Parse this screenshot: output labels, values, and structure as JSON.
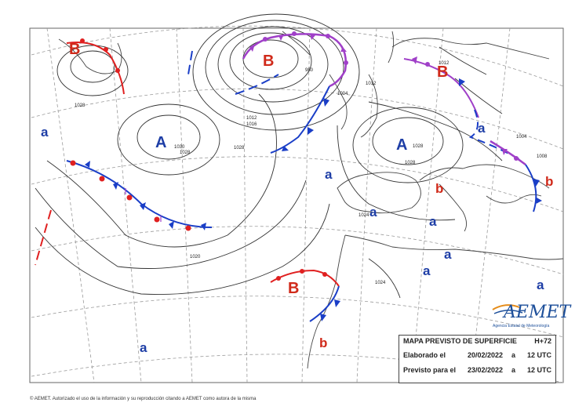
{
  "logo": {
    "name": "AEMET",
    "subtitle": "Agencia Estatal de Meteorología"
  },
  "info_box": {
    "title": "MAPA PREVISTO DE SUPERFICIE",
    "forecast_hour": "H+72",
    "issued_label": "Elaborado el",
    "issued_date": "20/02/2022",
    "issued_sep": "a",
    "issued_time": "12 UTC",
    "valid_label": "Previsto para el",
    "valid_date": "23/02/2022",
    "valid_sep": "a",
    "valid_time": "12 UTC"
  },
  "footer": {
    "copyright": "© AEMET. Autorizado el uso de la información y su reproducción citando a AEMET como autora de la misma"
  },
  "pressure_centers": {
    "b_greenland": "B",
    "b_north_atlantic": "B",
    "b_scandinavia": "B",
    "b_canaries": "B",
    "a_azores": "A",
    "a_europe": "A",
    "b_spain": "b",
    "b_greece": "b",
    "b_sahara": "b",
    "a_west": "a",
    "a_atlantic_mid": "a",
    "a_spain": "a",
    "a_med1": "a",
    "a_med2": "a",
    "a_africa1": "a",
    "a_africa2": "a",
    "a_south": "a",
    "a_italy": "a"
  },
  "isobar_labels": {
    "l1028a": "1028",
    "l1030": "1030",
    "l1028b": "1028",
    "l1028c": "1028",
    "l1020": "1020",
    "l1012a": "1012",
    "l1016": "1016",
    "l980": "980",
    "l1004": "1004",
    "l1012b": "1012",
    "l1028d": "1028",
    "l1024": "1024",
    "l1012c": "1012",
    "l1008": "1008",
    "l1028e": "1028",
    "l1004b": "1004",
    "l1024b": "1024"
  },
  "colors": {
    "high_label": "#1e3ea6",
    "low_label": "#d02a1a",
    "cold_front": "#1a3ec7",
    "warm_front": "#e02020",
    "occluded_front": "#a040c8",
    "isobar": "#333333",
    "grid": "#999999"
  }
}
